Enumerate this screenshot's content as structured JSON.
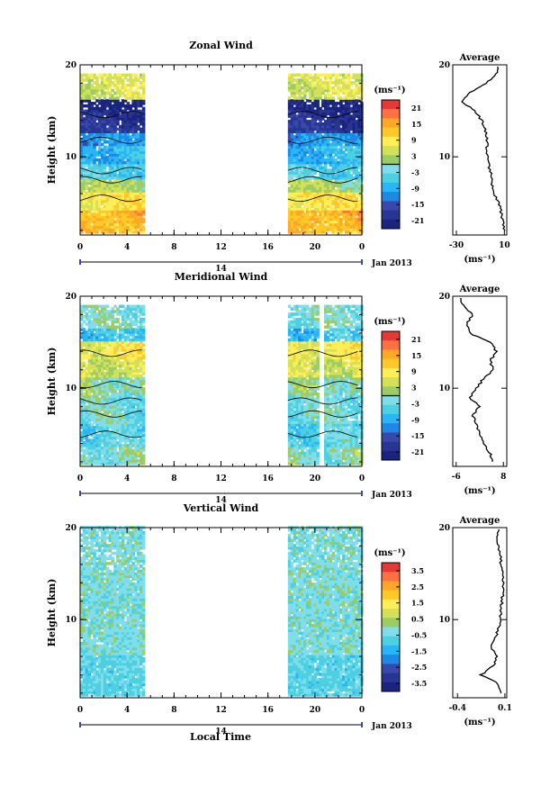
{
  "figure": {
    "xlabel": "Local Time",
    "ylabel": "Height (km)",
    "date_label": "Jan 2013",
    "day_label": "14",
    "average_title": "Average",
    "units_label": "(ms⁻¹)",
    "colors": [
      "#1a237e",
      "#283593",
      "#3949ab",
      "#1e88e5",
      "#29b6f6",
      "#4dd0e1",
      "#80deea",
      "#9ccc65",
      "#d4e157",
      "#ffee58",
      "#ffca28",
      "#ffa726",
      "#ff7043",
      "#e53935"
    ]
  },
  "chart_data": [
    {
      "type": "heatmap",
      "title": "Zonal Wind",
      "x_ticks": [
        "0",
        "4",
        "8",
        "12",
        "16",
        "20",
        "0"
      ],
      "xlim": [
        0,
        24
      ],
      "y_ticks": [
        "20",
        "10"
      ],
      "ylim": [
        1.5,
        20
      ],
      "observed_periods": [
        [
          0,
          5.3
        ],
        [
          17.7,
          24
        ]
      ],
      "colorbar": {
        "ticks": [
          "21",
          "15",
          "9",
          "3",
          "-3",
          "-9",
          "-15",
          "-21"
        ],
        "range": [
          -24,
          24
        ]
      },
      "profile": {
        "x_ticks": [
          "-30",
          "10"
        ],
        "xlim": [
          -33,
          12
        ],
        "heights": [
          2,
          3,
          4,
          5,
          6,
          7,
          8,
          9,
          10,
          11,
          12,
          13,
          14,
          15,
          16,
          17,
          18,
          19,
          20
        ],
        "values": [
          10,
          9,
          7,
          5,
          2,
          0,
          -1,
          -3,
          -4,
          -5,
          -4,
          -6,
          -9,
          -15,
          -25,
          -18,
          -5,
          3,
          5
        ]
      }
    },
    {
      "type": "heatmap",
      "title": "Meridional Wind",
      "x_ticks": [
        "0",
        "4",
        "8",
        "12",
        "16",
        "20",
        "0"
      ],
      "xlim": [
        0,
        24
      ],
      "y_ticks": [
        "20",
        "10"
      ],
      "ylim": [
        1.5,
        20
      ],
      "observed_periods": [
        [
          0,
          5.3
        ],
        [
          17.7,
          24
        ]
      ],
      "colorbar": {
        "ticks": [
          "21",
          "15",
          "9",
          "3",
          "-3",
          "-9",
          "-15",
          "-21"
        ],
        "range": [
          -24,
          24
        ]
      },
      "profile": {
        "x_ticks": [
          "-6",
          "8"
        ],
        "xlim": [
          -7,
          9
        ],
        "heights": [
          2,
          3,
          4,
          5,
          6,
          7,
          8,
          9,
          10,
          11,
          12,
          13,
          14,
          15,
          16,
          17,
          18,
          19,
          20
        ],
        "values": [
          5,
          4,
          2,
          1,
          0,
          -1,
          1,
          -2,
          0,
          2,
          5,
          4,
          6,
          4,
          -2,
          -3,
          -1,
          -4,
          -5
        ]
      }
    },
    {
      "type": "heatmap",
      "title": "Vertical Wind",
      "x_ticks": [
        "0",
        "4",
        "8",
        "12",
        "16",
        "20",
        "0"
      ],
      "xlim": [
        0,
        24
      ],
      "y_ticks": [
        "20",
        "10"
      ],
      "ylim": [
        1.5,
        20
      ],
      "observed_periods": [
        [
          0,
          5.3
        ],
        [
          17.7,
          24
        ]
      ],
      "colorbar": {
        "ticks": [
          "3.5",
          "2.5",
          "1.5",
          "0.5",
          "-0.5",
          "-1.5",
          "-2.5",
          "-3.5"
        ],
        "range": [
          -4,
          4
        ]
      },
      "profile": {
        "x_ticks": [
          "-0.4",
          "0.1"
        ],
        "xlim": [
          -0.45,
          0.12
        ],
        "heights": [
          2,
          3,
          4,
          5,
          6,
          7,
          8,
          9,
          10,
          11,
          12,
          13,
          14,
          15,
          16,
          17,
          18,
          19,
          20
        ],
        "values": [
          0.05,
          0.03,
          -0.15,
          -0.02,
          0.02,
          -0.05,
          0.0,
          0.03,
          0.05,
          0.06,
          0.07,
          0.08,
          0.08,
          0.07,
          0.06,
          0.05,
          0.03,
          0.02,
          0.04
        ]
      }
    }
  ]
}
